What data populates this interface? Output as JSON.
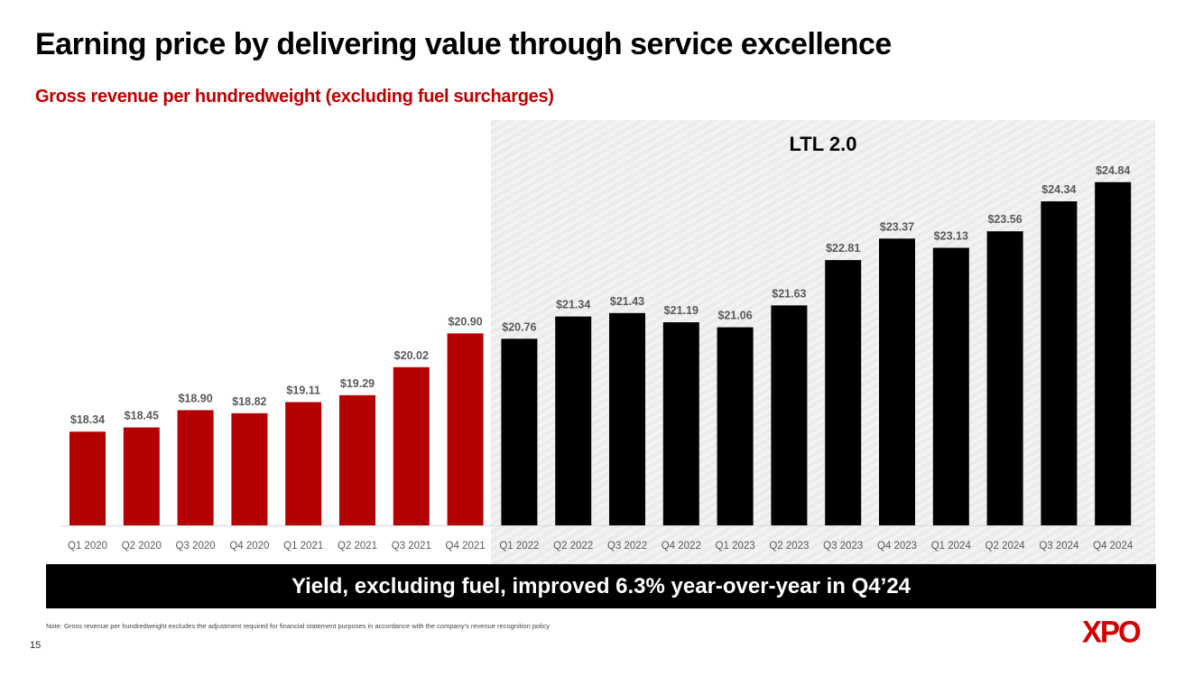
{
  "slide": {
    "title": "Earning price by delivering value through service excellence",
    "subtitle": "Gross revenue per hundredweight (excluding fuel surcharges)",
    "ltl_panel_label": "LTL 2.0",
    "banner": "Yield, excluding fuel, improved 6.3% year-over-year in Q4’24",
    "note": "Note: Gross revenue per hundredweight excludes the adjustment required for financial statement purposes in accordance with the company's revenue recognition policy",
    "page_number": "15",
    "logo": "XPO"
  },
  "colors": {
    "pre_ltl": "#b30000",
    "ltl": "#000000",
    "subtitle": "#c00000",
    "logo": "#d40000"
  },
  "chart_data": {
    "type": "bar",
    "title": "Gross revenue per hundredweight (excluding fuel surcharges)",
    "xlabel": "",
    "ylabel": "",
    "grid": false,
    "legend": "none",
    "annotation": "LTL 2.0",
    "categories": [
      "Q1 2020",
      "Q2 2020",
      "Q3 2020",
      "Q4 2020",
      "Q1 2021",
      "Q2 2021",
      "Q3 2021",
      "Q4 2021",
      "Q1 2022",
      "Q2 2022",
      "Q3 2022",
      "Q4 2022",
      "Q1 2023",
      "Q2 2023",
      "Q3 2023",
      "Q4 2023",
      "Q1 2024",
      "Q2 2024",
      "Q3 2024",
      "Q4 2024"
    ],
    "values": [
      18.34,
      18.45,
      18.9,
      18.82,
      19.11,
      19.29,
      20.02,
      20.9,
      20.76,
      21.34,
      21.43,
      21.19,
      21.06,
      21.63,
      22.81,
      23.37,
      23.13,
      23.56,
      24.34,
      24.84
    ],
    "labels": [
      "$18.34",
      "$18.45",
      "$18.90",
      "$18.82",
      "$19.11",
      "$19.29",
      "$20.02",
      "$20.90",
      "$20.76",
      "$21.34",
      "$21.43",
      "$21.19",
      "$21.06",
      "$21.63",
      "$22.81",
      "$23.37",
      "$23.13",
      "$23.56",
      "$24.34",
      "$24.84"
    ],
    "series_group": [
      "pre",
      "pre",
      "pre",
      "pre",
      "pre",
      "pre",
      "pre",
      "pre",
      "ltl",
      "ltl",
      "ltl",
      "ltl",
      "ltl",
      "ltl",
      "ltl",
      "ltl",
      "ltl",
      "ltl",
      "ltl",
      "ltl"
    ],
    "ylim": [
      15.9,
      25.0
    ]
  }
}
